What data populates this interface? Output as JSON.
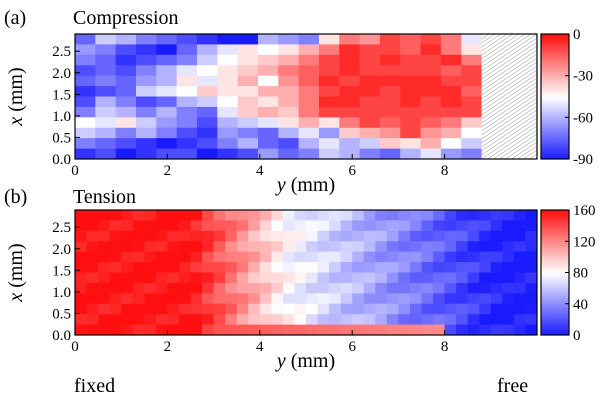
{
  "chart_data": [
    {
      "type": "heatmap",
      "panel_label": "(a)",
      "title": "Compression",
      "xlabel_var": "y",
      "xlabel_unit": " (mm)",
      "ylabel_var": "x",
      "ylabel_unit": " (mm)",
      "xlim": [
        0,
        10
      ],
      "ylim": [
        0,
        2.9
      ],
      "xticks": [
        0,
        2,
        4,
        6,
        8
      ],
      "xtick_labels": [
        "0",
        "2",
        "4",
        "6",
        "8"
      ],
      "yticks": [
        0,
        0.5,
        1,
        1.5,
        2,
        2.5
      ],
      "ytick_labels": [
        "0.0",
        "0.5",
        "1.0",
        "1.5",
        "2.0",
        "2.5"
      ],
      "colorbar": {
        "min": -90,
        "max": 0,
        "ticks": [
          0,
          -30,
          -60,
          -90
        ],
        "tick_labels": [
          "0",
          "-30",
          "-60",
          "-90"
        ],
        "low_color": "#1a1aff",
        "mid_color": "#ffffff",
        "high_color": "#ff0f0f"
      },
      "grid": {
        "cols": 20,
        "rows": 12,
        "cell_width_mm": 0.44,
        "cell_height_mm": 0.2417
      },
      "no_data_region": {
        "y_from": 8.8,
        "y_to": 10
      },
      "values": [
        [
          -75,
          -55,
          -60,
          -70,
          -75,
          -80,
          -85,
          -90,
          -90,
          -60,
          -65,
          -70,
          -40,
          -20,
          -25,
          -10,
          -15,
          -10,
          -20,
          -50
        ],
        [
          -65,
          -70,
          -80,
          -85,
          -90,
          -75,
          -60,
          -50,
          -40,
          -45,
          -40,
          -30,
          -20,
          -5,
          -10,
          -10,
          -15,
          -5,
          -20,
          -40
        ],
        [
          -70,
          -75,
          -85,
          -80,
          -75,
          -70,
          -55,
          -45,
          -40,
          -35,
          -30,
          -20,
          -10,
          -5,
          -10,
          -5,
          -10,
          -10,
          -5,
          -20
        ],
        [
          -80,
          -75,
          -80,
          -70,
          -60,
          -50,
          -45,
          -40,
          -35,
          -30,
          -20,
          -15,
          -10,
          -5,
          -10,
          -10,
          -10,
          -10,
          -15,
          -10
        ],
        [
          -75,
          -70,
          -75,
          -65,
          -60,
          -40,
          -50,
          -40,
          -30,
          -45,
          -25,
          -15,
          -5,
          -10,
          -5,
          -5,
          -5,
          -5,
          -10,
          -10
        ],
        [
          -85,
          -80,
          -75,
          -55,
          -50,
          -45,
          -35,
          -40,
          -40,
          -30,
          -30,
          -20,
          -10,
          -5,
          -5,
          -10,
          -5,
          -5,
          -5,
          -15
        ],
        [
          -80,
          -60,
          -70,
          -80,
          -75,
          -60,
          -55,
          -45,
          -35,
          -40,
          -30,
          -20,
          -5,
          -5,
          -10,
          -10,
          -5,
          -10,
          -5,
          -10
        ],
        [
          -70,
          -55,
          -60,
          -70,
          -60,
          -70,
          -75,
          -50,
          -35,
          -30,
          -35,
          -20,
          -10,
          -10,
          -10,
          -10,
          -10,
          -10,
          -10,
          -10
        ],
        [
          -45,
          -50,
          -40,
          -55,
          -65,
          -70,
          -80,
          -60,
          -55,
          -50,
          -40,
          -30,
          -40,
          -20,
          -10,
          -15,
          -10,
          -15,
          -20,
          -35
        ],
        [
          -55,
          -60,
          -70,
          -60,
          -70,
          -80,
          -85,
          -65,
          -70,
          -75,
          -60,
          -50,
          -65,
          -35,
          -30,
          -25,
          -10,
          -25,
          -30,
          -45
        ],
        [
          -70,
          -75,
          -80,
          -85,
          -90,
          -85,
          -80,
          -70,
          -60,
          -75,
          -80,
          -60,
          -50,
          -60,
          -55,
          -35,
          -40,
          -30,
          -45,
          -55
        ],
        [
          -85,
          -80,
          -90,
          -85,
          -80,
          -80,
          -90,
          -85,
          -80,
          -65,
          -75,
          -70,
          -55,
          -60,
          -70,
          -75,
          -60,
          -50,
          -65,
          -70
        ]
      ]
    },
    {
      "type": "heatmap",
      "panel_label": "(b)",
      "title": "Tension",
      "xlabel_var": "y",
      "xlabel_unit": " (mm)",
      "ylabel_var": "x",
      "ylabel_unit": " (mm)",
      "xlim": [
        0,
        10
      ],
      "ylim": [
        0,
        2.9
      ],
      "xticks": [
        0,
        2,
        4,
        6,
        8
      ],
      "xtick_labels": [
        "0",
        "2",
        "4",
        "6",
        "8"
      ],
      "yticks": [
        0,
        0.5,
        1,
        1.5,
        2,
        2.5
      ],
      "ytick_labels": [
        "0.0",
        "0.5",
        "1.0",
        "1.5",
        "2.0",
        "2.5"
      ],
      "colorbar": {
        "min": 0,
        "max": 160,
        "ticks": [
          0,
          40,
          80,
          120,
          160
        ],
        "tick_labels": [
          "0",
          "40",
          "80",
          "120",
          "160"
        ],
        "low_color": "#1a1aff",
        "mid_color": "#ffffff",
        "high_color": "#ff0f0f"
      },
      "grid": {
        "cols": 40,
        "rows": 12,
        "cell_width_mm": 0.25,
        "cell_height_mm": 0.2417
      },
      "gradient_model": {
        "plateau_value": 160,
        "red_until_y": 2.5,
        "white_at_y": 4.6,
        "blue_at_y": 9.3,
        "bottom_row_value": 150,
        "row_variation": 10
      }
    }
  ],
  "footer": {
    "left_label": "fixed",
    "right_label": "free"
  },
  "colors": {
    "axes": "#000000",
    "background": "#ffffff",
    "nodata_hatch": "#bdbdbd"
  }
}
